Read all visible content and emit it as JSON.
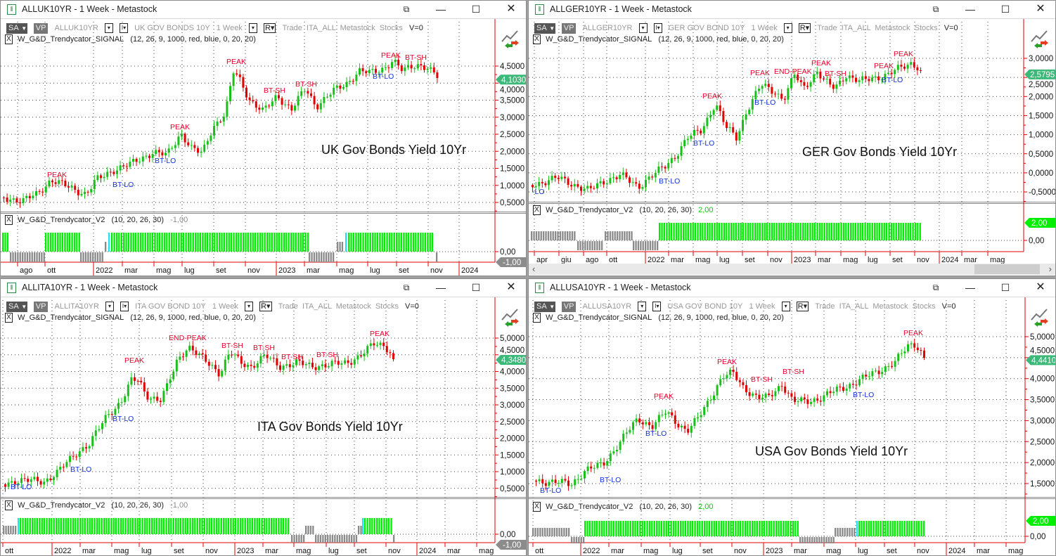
{
  "windows": [
    {
      "title": "ALLUK10YR - 1 Week - Metastock",
      "toolbar": {
        "sa": "SA",
        "vp": "VP",
        "symbol": "ALLUK10YR",
        "description": "UK GOV BONDS 10Y",
        "period": "1 Week",
        "r": "R",
        "extra": "Trade  ITA_ALL  Metastock  Stocks",
        "v": "V=0"
      },
      "signal_indicator": {
        "name": "W_G&D_Trendycator_SIGNAL",
        "params": "(12, 26, 9, 1000, red, blue, 0, 20, 20)"
      },
      "chart_title": "UK Gov Bonds Yield 10Yr",
      "last_price": "4,1030",
      "price_ticks": [
        "4,5000",
        "4,0000",
        "3,5000",
        "3,0000",
        "2,5000",
        "2,0000",
        "1,5000",
        "1,0000",
        "0,5000"
      ],
      "annotations": [
        {
          "text": "PEAK",
          "type": "peak"
        },
        {
          "text": "BT-LO",
          "type": "lo"
        },
        {
          "text": "BT-LO",
          "type": "lo"
        },
        {
          "text": "PEAK",
          "type": "peak"
        },
        {
          "text": "PEAK",
          "type": "peak"
        },
        {
          "text": "BT-SH",
          "type": "peak"
        },
        {
          "text": "BT-SH",
          "type": "peak"
        },
        {
          "text": "BT-LO",
          "type": "lo"
        },
        {
          "text": "PEAK",
          "type": "peak"
        },
        {
          "text": "BT-SH",
          "type": "peak"
        }
      ],
      "trend_indicator": {
        "name": "W_G&D_Trendycator_V2",
        "params": "(10, 20, 26, 30)",
        "value": "-1,00",
        "value_color": "#8c8c8c"
      },
      "indicator_ticks": [
        "0,00"
      ],
      "months": [
        "ago",
        "ott",
        "2022",
        "mar",
        "mag",
        "lug",
        "set",
        "nov",
        "2023",
        "mar",
        "mag",
        "lug",
        "set",
        "nov",
        "2024"
      ]
    },
    {
      "title": "ALLGER10YR - 1 Week - Metastock",
      "toolbar": {
        "sa": "SA",
        "vp": "VP",
        "symbol": "ALLGER10YR",
        "description": "GER GOV BOND 10Y",
        "period": "1 Week",
        "r": "R",
        "extra": "Trade  ITA_ALL  Metastock  Stocks",
        "v": "V=0"
      },
      "signal_indicator": {
        "name": "W_G&D_Trendycator_SIGNAL",
        "params": "(12, 26, 9, 1000, red, blue, 0, 20, 20)"
      },
      "chart_title": "GER Gov Bonds Yield 10Yr",
      "last_price": "2,5795",
      "price_ticks": [
        "3,0000",
        "2,5000",
        "2,0000",
        "1,5000",
        "1,0000",
        "0,5000",
        "0,0000",
        "-0,5000"
      ],
      "annotations": [
        {
          "text": "-LO",
          "type": "lo"
        },
        {
          "text": "BT-LO",
          "type": "lo"
        },
        {
          "text": "BT-LO",
          "type": "lo"
        },
        {
          "text": "PEAK",
          "type": "peak"
        },
        {
          "text": "BT-LO",
          "type": "lo"
        },
        {
          "text": "PEAK",
          "type": "peak"
        },
        {
          "text": "END-PEAK",
          "type": "peak"
        },
        {
          "text": "PEAK",
          "type": "peak"
        },
        {
          "text": "BT-SH",
          "type": "peak"
        },
        {
          "text": "PEAK",
          "type": "peak"
        },
        {
          "text": "BT-LO",
          "type": "lo"
        },
        {
          "text": "PEAK",
          "type": "peak"
        }
      ],
      "trend_indicator": {
        "name": "W_G&D_Trendycator_V2",
        "params": "(10, 20, 26, 30)",
        "value": "2,00",
        "value_color": "#00e000"
      },
      "indicator_ticks": [
        "0,00"
      ],
      "months": [
        "apr",
        "giu",
        "ago",
        "ott",
        "2022",
        "mar",
        "mag",
        "lug",
        "set",
        "nov",
        "2023",
        "mar",
        "mag",
        "lug",
        "set",
        "nov",
        "2024",
        "mar",
        "mag"
      ]
    },
    {
      "title": "ALLITA10YR - 1 Week - Metastock",
      "toolbar": {
        "sa": "SA",
        "vp": "VP",
        "symbol": "ALLITA10YR",
        "description": "ITA GOV BOND 10Y",
        "period": "1 Week",
        "r": "R",
        "extra": "Trade  ITA_ALL  Metastock  Stocks",
        "v": "V=0"
      },
      "signal_indicator": {
        "name": "W_G&D_Trendycator_SIGNAL",
        "params": "(12, 26, 9, 1000, red, blue, 0, 20, 20)"
      },
      "chart_title": "ITA Gov Bonds Yield 10Yr",
      "last_price": "4,3480",
      "price_ticks": [
        "5,0000",
        "4,5000",
        "4,0000",
        "3,5000",
        "3,0000",
        "2,5000",
        "2,0000",
        "1,5000",
        "1,0000",
        "0,5000"
      ],
      "annotations": [
        {
          "text": "BT-LO",
          "type": "lo"
        },
        {
          "text": "BT-LO",
          "type": "lo"
        },
        {
          "text": "PEAK",
          "type": "peak"
        },
        {
          "text": "BT-LO",
          "type": "lo"
        },
        {
          "text": "END-PEAK",
          "type": "peak"
        },
        {
          "text": "BT-SH",
          "type": "peak"
        },
        {
          "text": "BT-SH",
          "type": "peak"
        },
        {
          "text": "BT-SH",
          "type": "peak"
        },
        {
          "text": "BT-SH",
          "type": "peak"
        },
        {
          "text": "PEAK",
          "type": "peak"
        }
      ],
      "trend_indicator": {
        "name": "W_G&D_Trendycator_V2",
        "params": "(10, 20, 26, 30)",
        "value": "-1,00",
        "value_color": "#8c8c8c"
      },
      "indicator_ticks": [
        "0,00"
      ],
      "months": [
        "ott",
        "2022",
        "mar",
        "mag",
        "lug",
        "set",
        "nov",
        "2023",
        "mar",
        "mag",
        "lug",
        "set",
        "nov",
        "2024",
        "mar",
        "mag"
      ]
    },
    {
      "title": "ALLUSA10YR - 1 Week - Metastock",
      "toolbar": {
        "sa": "SA",
        "vp": "VP",
        "symbol": "ALLUSA10YR",
        "description": "USA GOV BOND 10Y",
        "period": "1 Week",
        "r": "R",
        "extra": "Trade  ITA_ALL  Metastock  Stocks",
        "v": "V=0"
      },
      "signal_indicator": {
        "name": "W_G&D_Trendycator_SIGNAL",
        "params": "(12, 26, 9, 1000, red, blue, 0, 20, 20)"
      },
      "chart_title": "USA Gov Bonds Yield 10Yr",
      "last_price": "4,4410",
      "price_ticks": [
        "5,0000",
        "4,5000",
        "4,0000",
        "3,5000",
        "3,0000",
        "2,5000",
        "2,0000",
        "1,5000"
      ],
      "annotations": [
        {
          "text": "BT-LO",
          "type": "lo"
        },
        {
          "text": "BT-LO",
          "type": "lo"
        },
        {
          "text": "BT-LO",
          "type": "lo"
        },
        {
          "text": "PEAK",
          "type": "peak"
        },
        {
          "text": "PEAK",
          "type": "peak"
        },
        {
          "text": "BT-SH",
          "type": "peak"
        },
        {
          "text": "BT-SH",
          "type": "peak"
        },
        {
          "text": "BT-LO",
          "type": "lo"
        },
        {
          "text": "PEAK",
          "type": "peak"
        }
      ],
      "trend_indicator": {
        "name": "W_G&D_Trendycator_V2",
        "params": "(10, 20, 26, 30)",
        "value": "2,00",
        "value_color": "#00e000"
      },
      "indicator_ticks": [
        "0,00"
      ],
      "months": [
        "ott",
        "2022",
        "mar",
        "mag",
        "lug",
        "set",
        "nov",
        "2023",
        "mar",
        "mag",
        "lug",
        "set",
        "nov",
        "2024",
        "mar",
        "mag"
      ]
    }
  ],
  "colors": {
    "up": "#19c019",
    "down": "#e00000",
    "peak": "#e8002a",
    "lo": "#1030e0",
    "axis": "#e00000",
    "last_price_tag": "#3cb878",
    "hist_up": "#00ee00",
    "hist_neutral": "#8a8a8a",
    "hist_turn": "#22e0f0"
  }
}
